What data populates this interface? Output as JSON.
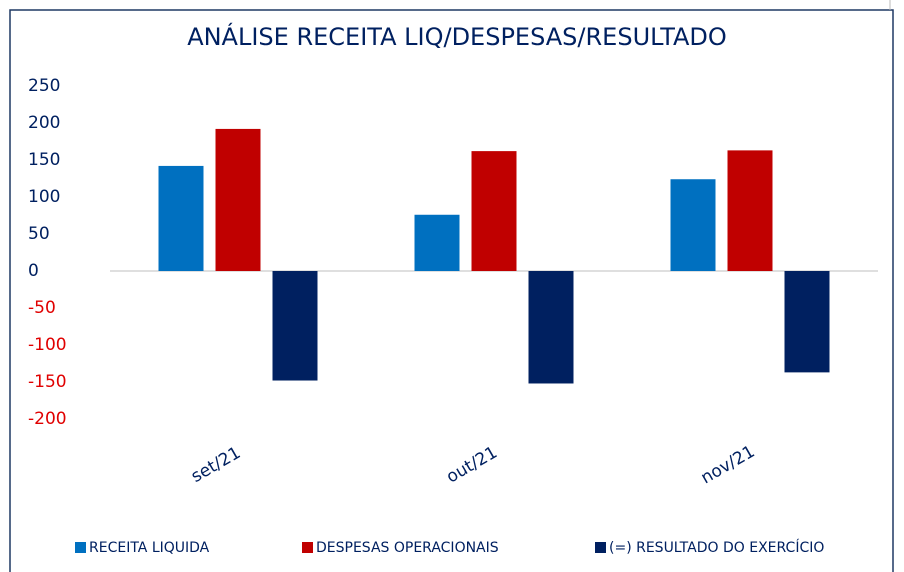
{
  "chart_data": {
    "type": "bar",
    "title": "ANÁLISE RECEITA LIQ/DESPESAS/RESULTADO",
    "categories": [
      "set/21",
      "out/21",
      "nov/21"
    ],
    "series": [
      {
        "name": "RECEITA LIQUIDA",
        "color": "#0070c0",
        "values": [
          142,
          76,
          124
        ]
      },
      {
        "name": "DESPESAS OPERACIONAIS",
        "color": "#c00000",
        "values": [
          192,
          162,
          163
        ]
      },
      {
        "name": "(=) RESULTADO DO EXERCÍCIO",
        "color": "#002060",
        "values": [
          -148,
          -152,
          -137
        ]
      }
    ],
    "ylim": [
      -200,
      250
    ],
    "yticks": [
      -200,
      -150,
      -100,
      -50,
      0,
      50,
      100,
      150,
      200,
      250
    ],
    "tick_color": "#002060",
    "negative_tick_color": "#e00000",
    "legend": "bottom"
  }
}
